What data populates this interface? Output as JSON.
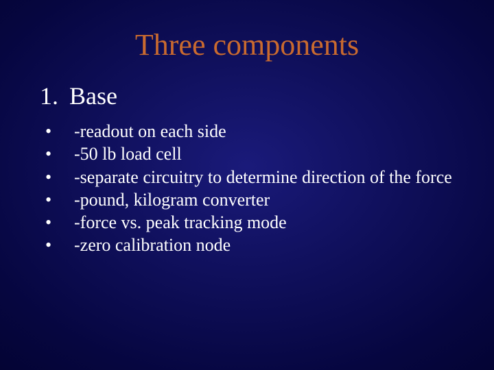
{
  "slide": {
    "title": "Three components",
    "section": {
      "number": "1.",
      "label": "Base"
    },
    "bullets": [
      "-readout on each side",
      "-50 lb load cell",
      "-separate circuitry to determine direction of the force",
      "-pound, kilogram converter",
      "-force vs.  peak tracking mode",
      "-zero calibration  node"
    ],
    "colors": {
      "title_color": "#c96a2f",
      "text_color": "#ffffff",
      "background_center": "#1a1a7a",
      "background_edge": "#020228"
    },
    "typography": {
      "title_fontsize": 44,
      "section_fontsize": 36,
      "bullet_fontsize": 26,
      "font_family": "Times New Roman"
    }
  }
}
